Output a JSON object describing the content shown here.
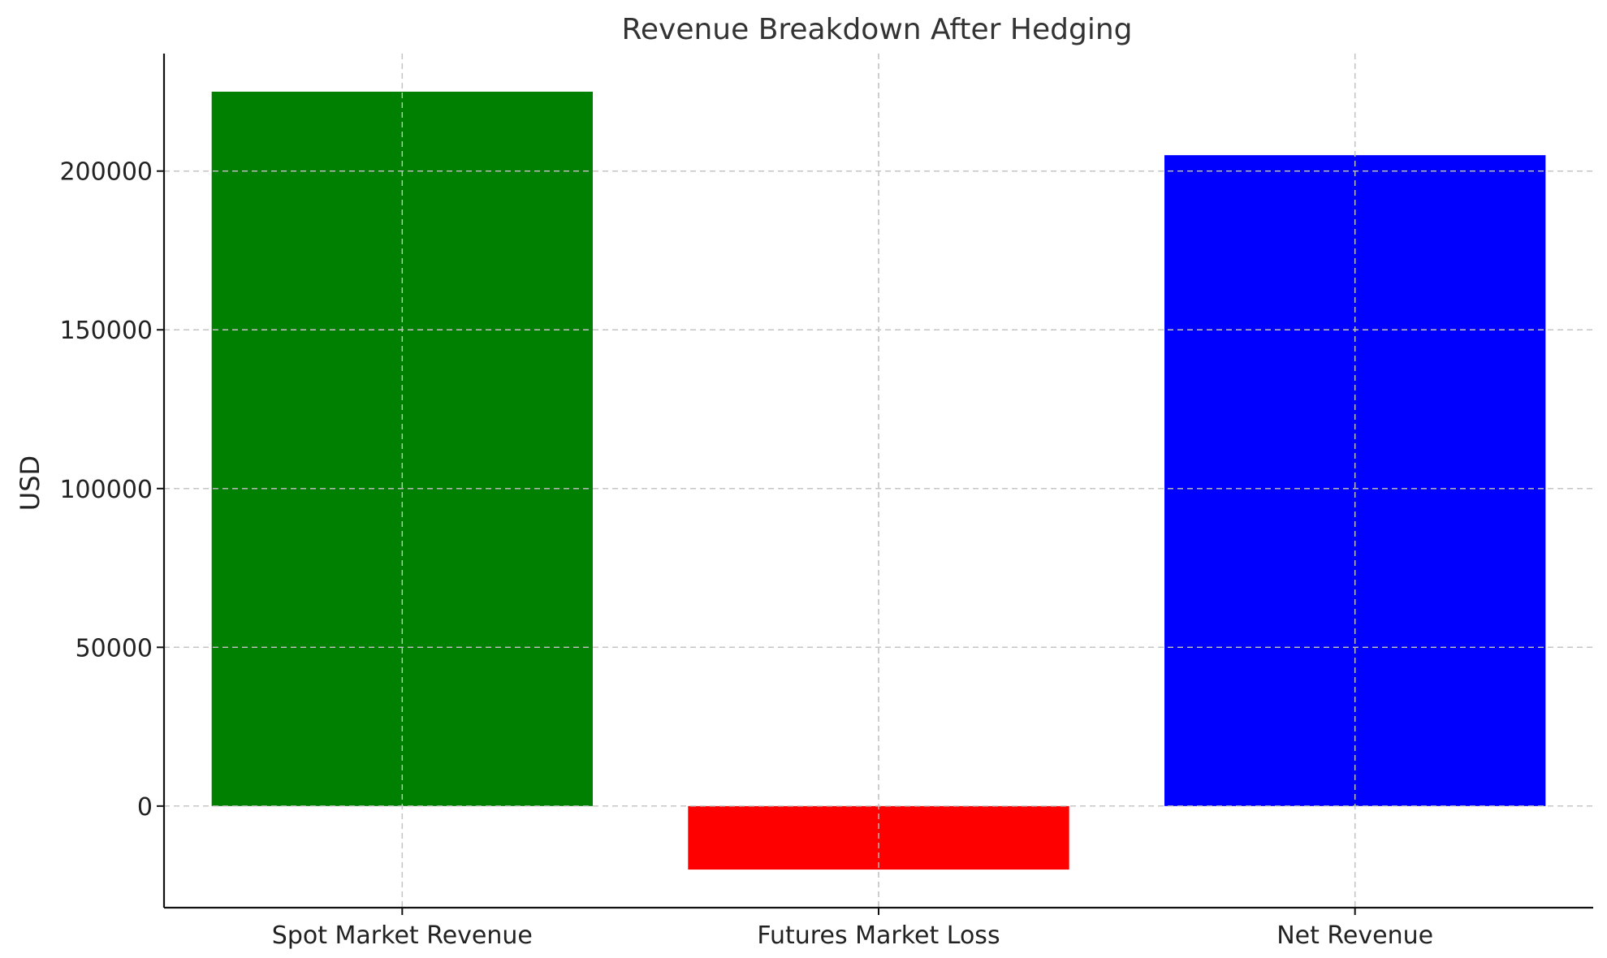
{
  "chart_data": {
    "type": "bar",
    "title": "Revenue Breakdown After Hedging",
    "xlabel": "",
    "ylabel": "USD",
    "categories": [
      "Spot Market Revenue",
      "Futures Market Loss",
      "Net Revenue"
    ],
    "values": [
      225000,
      -20000,
      205000
    ],
    "colors": [
      "#008000",
      "#ff0000",
      "#0000ff"
    ],
    "yticks": [
      0,
      50000,
      100000,
      150000,
      200000
    ],
    "ytick_labels": [
      "0",
      "50000",
      "100000",
      "150000",
      "200000"
    ],
    "ylim": [
      -32000,
      237000
    ],
    "grid": true,
    "legend": "none"
  }
}
